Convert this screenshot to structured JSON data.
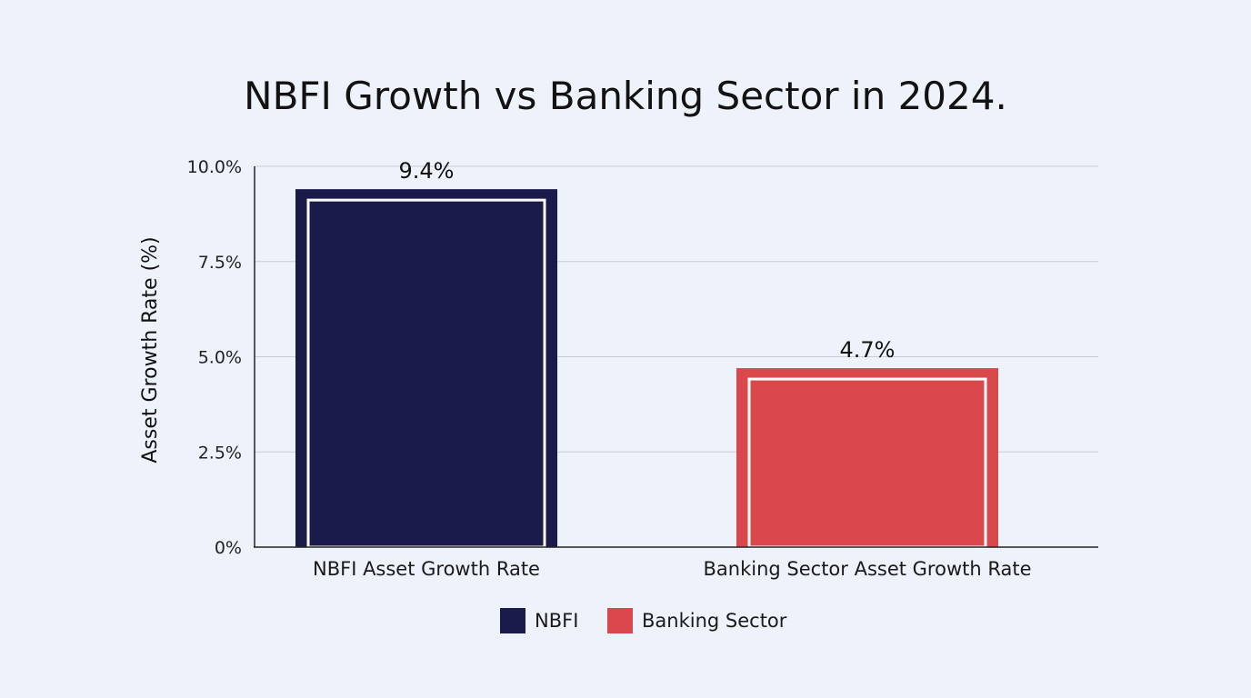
{
  "chart_data": {
    "type": "bar",
    "title": "NBFI Growth vs Banking Sector in 2024.",
    "ylabel": "Asset Growth Rate (%)",
    "xlabel": "",
    "categories": [
      "NBFI Asset Growth Rate",
      "Banking Sector Asset Growth Rate"
    ],
    "values": [
      9.4,
      4.7
    ],
    "data_labels": [
      "9.4%",
      "4.7%"
    ],
    "bar_colors": [
      "#1a1b4b",
      "#d9494b"
    ],
    "ylim": [
      0,
      10
    ],
    "yticks": [
      0,
      2.5,
      5,
      7.5,
      10
    ],
    "ytick_labels": [
      "0%",
      "2.5%",
      "5.0%",
      "7.5%",
      "10.0%"
    ],
    "grid": true,
    "legend": {
      "placement": "bottom-center",
      "entries": [
        {
          "label": "NBFI",
          "color": "#1a1b4b"
        },
        {
          "label": "Banking Sector",
          "color": "#d9494b"
        }
      ]
    }
  }
}
